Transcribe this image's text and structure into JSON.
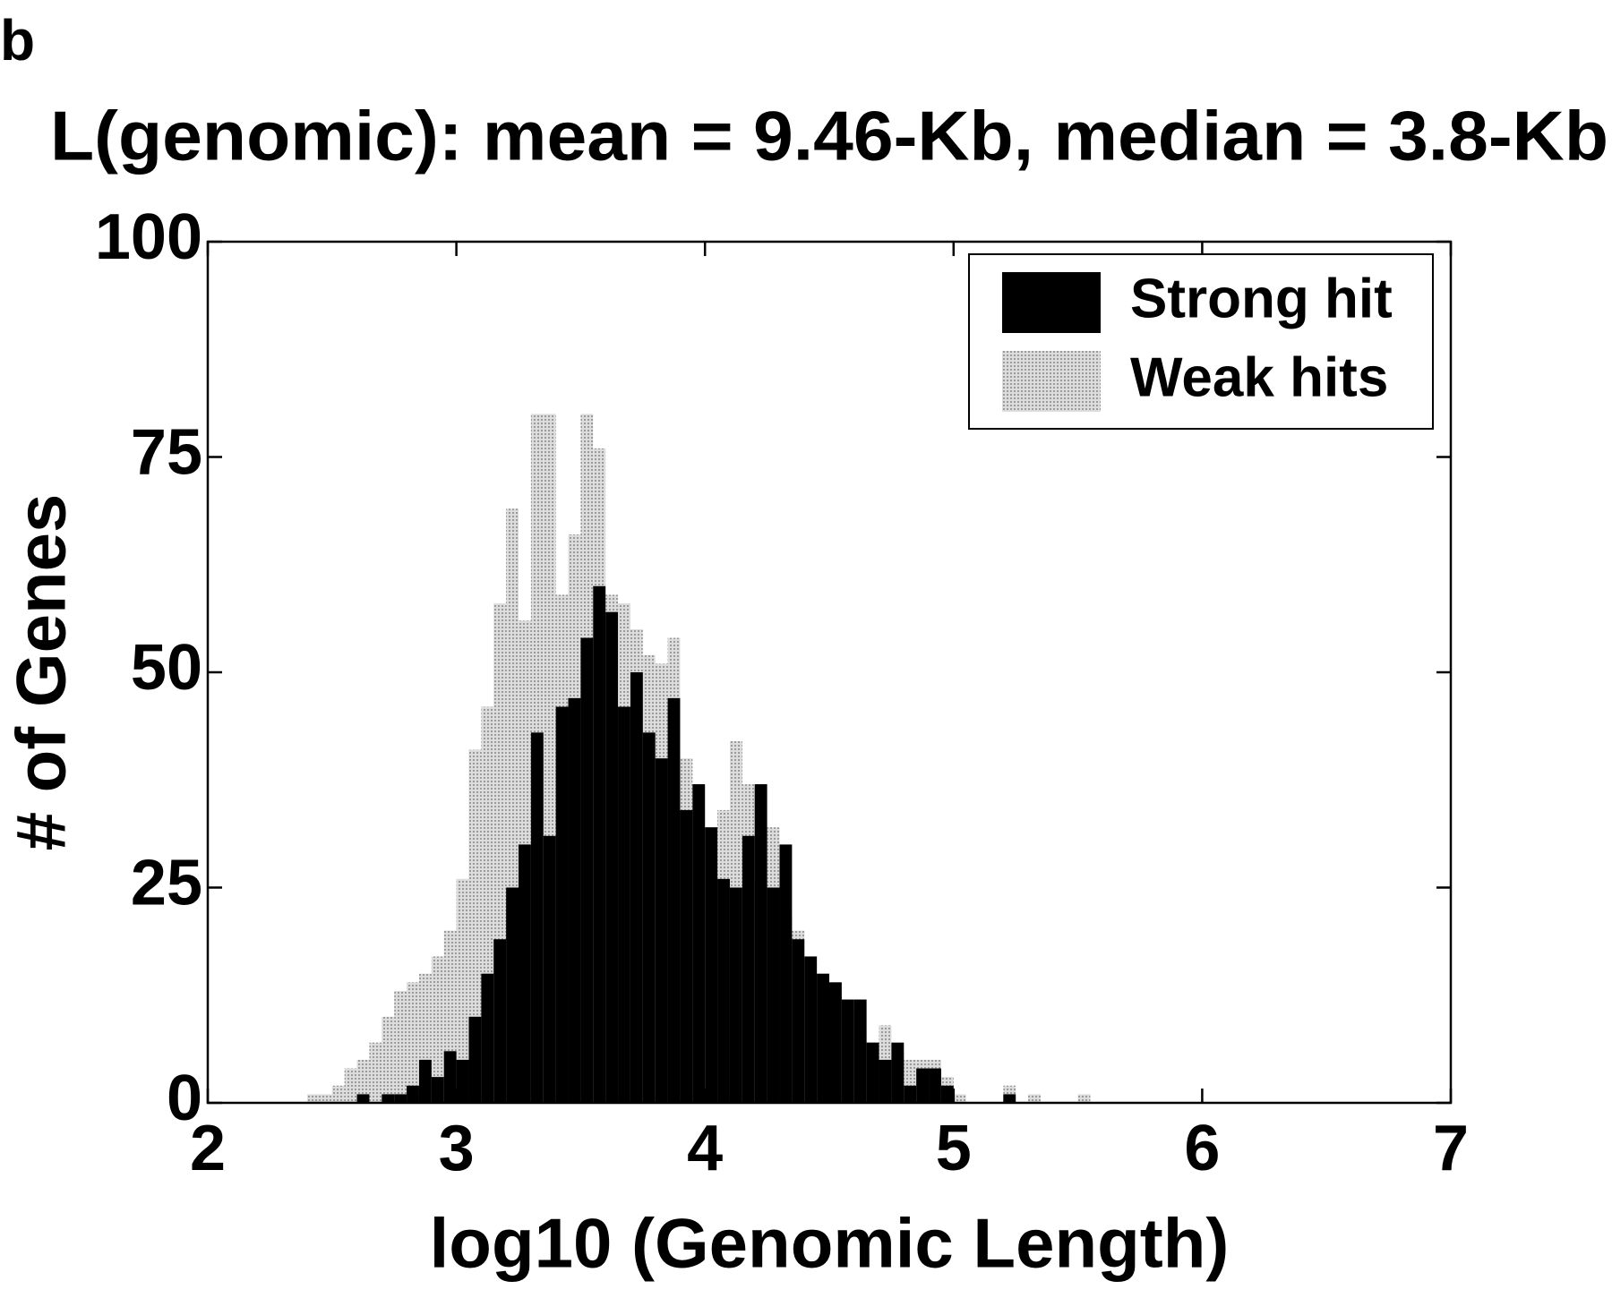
{
  "chart_data": {
    "type": "histogram",
    "panel_label": "b",
    "title": "L(genomic): mean = 9.46-Kb, median = 3.8-Kb",
    "x_label": "log10 (Genomic Length)",
    "y_label": "# of Genes",
    "bins": [
      2.4,
      2.45,
      2.5,
      2.55,
      2.6,
      2.65,
      2.7,
      2.75,
      2.8,
      2.85,
      2.9,
      2.95,
      3.0,
      3.05,
      3.1,
      3.15,
      3.2,
      3.25,
      3.3,
      3.35,
      3.4,
      3.45,
      3.5,
      3.55,
      3.6,
      3.65,
      3.7,
      3.75,
      3.8,
      3.85,
      3.9,
      3.95,
      4.0,
      4.05,
      4.1,
      4.15,
      4.2,
      4.25,
      4.3,
      4.35,
      4.4,
      4.45,
      4.5,
      4.55,
      4.6,
      4.65,
      4.7,
      4.75,
      4.8,
      4.85,
      4.9,
      4.95,
      5.0,
      5.05,
      5.1,
      5.15,
      5.2,
      5.25,
      5.3,
      5.35,
      5.4,
      5.45,
      5.5,
      5.55,
      5.6
    ],
    "series": [
      {
        "name": "Weak hits",
        "color": "#c4c4c4",
        "values": [
          1,
          1,
          2,
          4,
          5,
          7,
          10,
          13,
          14,
          15,
          17,
          20,
          26,
          41,
          46,
          58,
          69,
          56,
          80,
          80,
          59,
          66,
          80,
          76,
          59,
          58,
          55,
          52,
          51,
          54,
          40,
          34,
          28,
          34,
          42,
          37,
          26,
          32,
          22,
          20,
          17,
          15,
          13,
          11,
          8,
          7,
          9,
          6,
          5,
          5,
          5,
          3,
          1,
          0,
          0,
          0,
          2,
          0,
          1,
          0,
          0,
          0,
          1,
          0
        ]
      },
      {
        "name": "Strong hit",
        "color": "#000000",
        "values": [
          0,
          0,
          0,
          0,
          1,
          0,
          1,
          1,
          2,
          5,
          3,
          6,
          5,
          10,
          15,
          19,
          25,
          30,
          43,
          31,
          46,
          47,
          54,
          60,
          57,
          46,
          50,
          43,
          40,
          47,
          34,
          37,
          32,
          26,
          25,
          31,
          37,
          25,
          30,
          19,
          17,
          15,
          14,
          12,
          12,
          7,
          5,
          7,
          2,
          4,
          4,
          2,
          0,
          0,
          0,
          0,
          1,
          0,
          0,
          0,
          0,
          0,
          0,
          0
        ]
      }
    ],
    "legend_order": [
      1,
      0
    ],
    "legend_position": "upper right",
    "xlim": [
      2,
      7
    ],
    "xticks": [
      2,
      3,
      4,
      5,
      6,
      7
    ],
    "ylim": [
      0,
      100
    ],
    "yticks": [
      0,
      25,
      50,
      75,
      100
    ]
  }
}
